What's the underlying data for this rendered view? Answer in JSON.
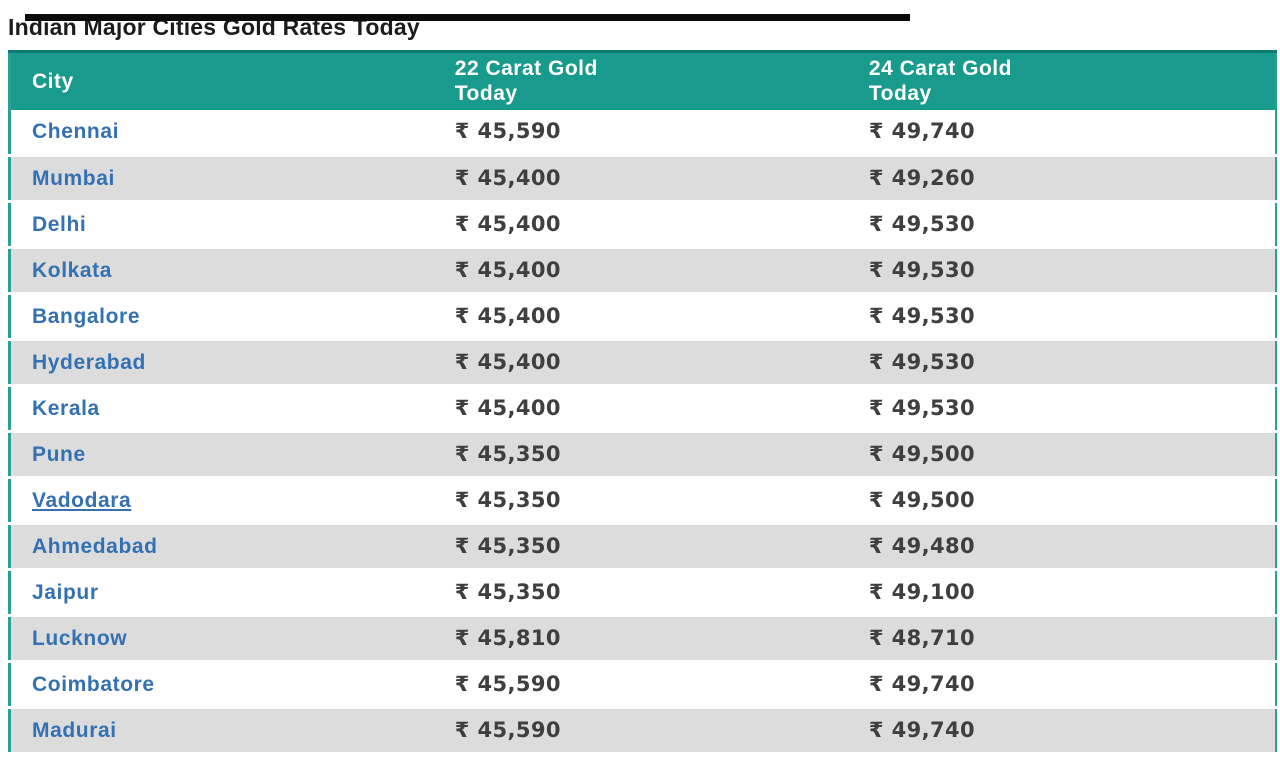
{
  "page": {
    "title": "Indian Major Cities Gold Rates Today"
  },
  "table": {
    "headers": [
      "City",
      "22 Carat Gold Today",
      "24 Carat Gold Today"
    ],
    "rows": [
      {
        "city": "Chennai",
        "c22": "₹ 45,590",
        "c24": "₹ 49,740",
        "underlined": false
      },
      {
        "city": "Mumbai",
        "c22": "₹ 45,400",
        "c24": "₹ 49,260",
        "underlined": false
      },
      {
        "city": "Delhi",
        "c22": "₹ 45,400",
        "c24": "₹ 49,530",
        "underlined": false
      },
      {
        "city": "Kolkata",
        "c22": "₹ 45,400",
        "c24": "₹ 49,530",
        "underlined": false
      },
      {
        "city": "Bangalore",
        "c22": "₹ 45,400",
        "c24": "₹ 49,530",
        "underlined": false
      },
      {
        "city": "Hyderabad",
        "c22": "₹ 45,400",
        "c24": "₹ 49,530",
        "underlined": false
      },
      {
        "city": "Kerala",
        "c22": "₹ 45,400",
        "c24": "₹ 49,530",
        "underlined": false
      },
      {
        "city": "Pune",
        "c22": "₹ 45,350",
        "c24": "₹ 49,500",
        "underlined": false
      },
      {
        "city": "Vadodara",
        "c22": "₹ 45,350",
        "c24": "₹ 49,500",
        "underlined": true
      },
      {
        "city": "Ahmedabad",
        "c22": "₹ 45,350",
        "c24": "₹ 49,480",
        "underlined": false
      },
      {
        "city": "Jaipur",
        "c22": "₹ 45,350",
        "c24": "₹ 49,100",
        "underlined": false
      },
      {
        "city": "Lucknow",
        "c22": "₹ 45,810",
        "c24": "₹ 48,710",
        "underlined": false
      },
      {
        "city": "Coimbatore",
        "c22": "₹ 45,590",
        "c24": "₹ 49,740",
        "underlined": false
      },
      {
        "city": "Madurai",
        "c22": "₹ 45,590",
        "c24": "₹ 49,740",
        "underlined": false
      }
    ]
  },
  "chart_data": {
    "type": "table",
    "title": "Indian Major Cities Gold Rates Today",
    "columns": [
      "City",
      "22 Carat Gold Today",
      "24 Carat Gold Today"
    ],
    "currency_symbol": "₹",
    "rows": [
      [
        "Chennai",
        45590,
        49740
      ],
      [
        "Mumbai",
        45400,
        49260
      ],
      [
        "Delhi",
        45400,
        49530
      ],
      [
        "Kolkata",
        45400,
        49530
      ],
      [
        "Bangalore",
        45400,
        49530
      ],
      [
        "Hyderabad",
        45400,
        49530
      ],
      [
        "Kerala",
        45400,
        49530
      ],
      [
        "Pune",
        45350,
        49500
      ],
      [
        "Vadodara",
        45350,
        49500
      ],
      [
        "Ahmedabad",
        45350,
        49480
      ],
      [
        "Jaipur",
        45350,
        49100
      ],
      [
        "Lucknow",
        45810,
        48710
      ],
      [
        "Coimbatore",
        45590,
        49740
      ],
      [
        "Madurai",
        45590,
        49740
      ]
    ]
  },
  "colors": {
    "header_bg": "#189a8d",
    "header_top_border": "#0d7d73",
    "table_side_border": "#2aa094",
    "row_alt_bg": "#dcdcdc",
    "link_blue": "#3371b3",
    "value_text": "#3f3f3f",
    "top_bar": "#0b0b0b"
  }
}
